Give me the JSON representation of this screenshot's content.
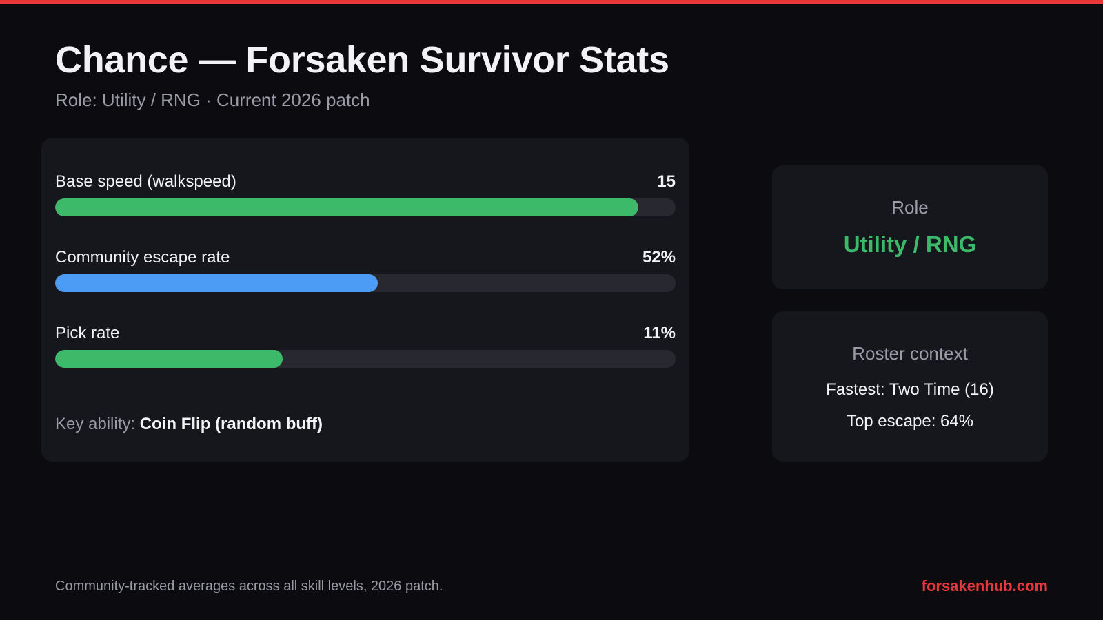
{
  "header": {
    "title": "Chance — Forsaken Survivor Stats",
    "subtitle": "Role: Utility / RNG · Current 2026 patch"
  },
  "stats": [
    {
      "label": "Base speed (walkspeed)",
      "value": "15",
      "fill_fraction": 0.94,
      "color": "#3dba69"
    },
    {
      "label": "Community escape rate",
      "value": "52%",
      "fill_fraction": 0.52,
      "color": "#4c9bf5"
    },
    {
      "label": "Pick rate",
      "value": "11%",
      "fill_fraction": 0.367,
      "color": "#3dba69"
    }
  ],
  "key_ability": {
    "label": "Key ability: ",
    "value": "Coin Flip (random buff)"
  },
  "role_card": {
    "label": "Role",
    "value": "Utility / RNG"
  },
  "roster_context": {
    "label": "Roster context",
    "fastest": "Fastest: Two Time (16)",
    "top_escape": "Top escape: 64%"
  },
  "footer": {
    "note": "Community-tracked averages across all skill levels, 2026 patch.",
    "site": "forsakenhub.com"
  },
  "colors": {
    "accent": "#e5373c",
    "green": "#3dba69",
    "blue": "#4c9bf5"
  }
}
